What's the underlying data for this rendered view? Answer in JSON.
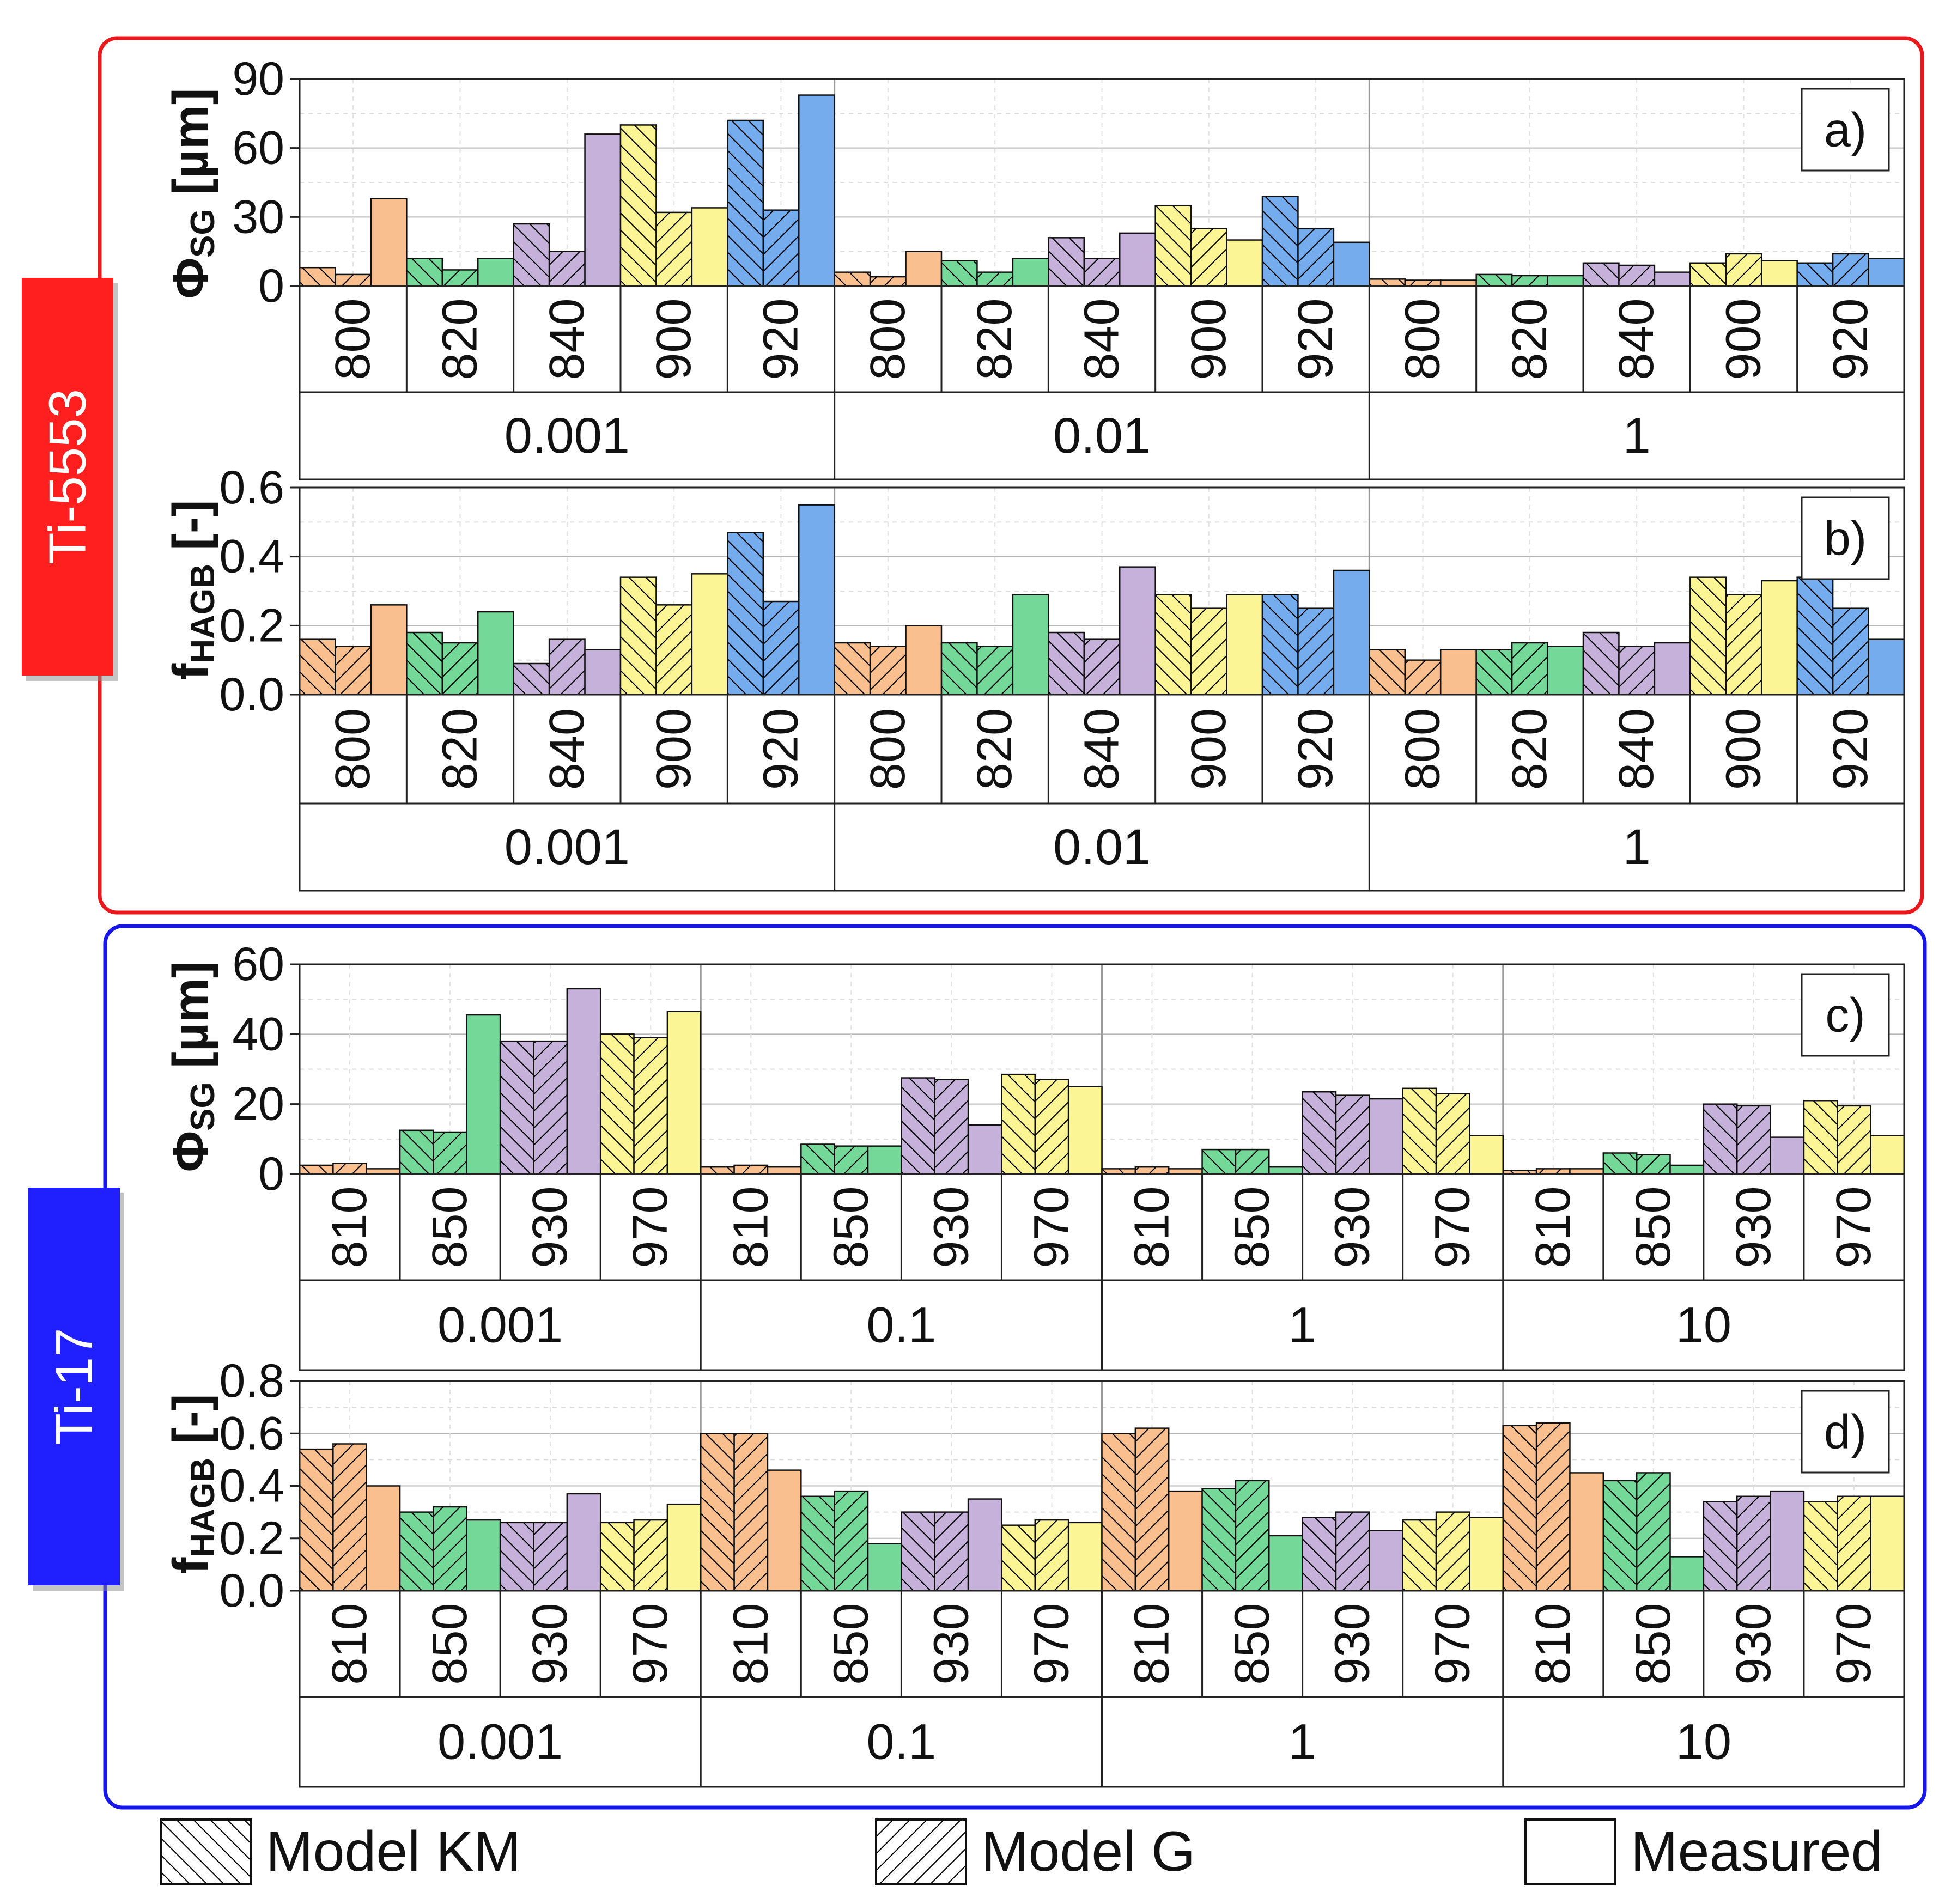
{
  "groups": [
    {
      "id": "ti5553",
      "label": "Ti-5553",
      "frame_color": "#e8191d",
      "tab_color": "#ff1f1f"
    },
    {
      "id": "ti17",
      "label": "Ti-17",
      "frame_color": "#1616e6",
      "tab_color": "#2020ff"
    }
  ],
  "legend": [
    {
      "pattern": "km",
      "label": "Model KM"
    },
    {
      "pattern": "g",
      "label": "Model G"
    },
    {
      "pattern": "none",
      "label": "Measured"
    }
  ],
  "temp_colors": {
    "800": "#f9bf8e",
    "820": "#74d898",
    "840": "#c6b1da",
    "900": "#fbf596",
    "920": "#74acee",
    "810": "#f9bf8e",
    "850": "#74d898",
    "930": "#c6b1da",
    "970": "#fbf596"
  },
  "chart_data": [
    {
      "id": "a",
      "panel_label": "a)",
      "group": "ti5553",
      "type": "bar",
      "ylabel_main": "Φ",
      "ylabel_sub": "SG",
      "ylabel_unit": "[µm]",
      "ylim": [
        0,
        90
      ],
      "yticks": [
        "0",
        "30",
        "60",
        "90"
      ],
      "grid": true,
      "strain_rates": [
        "0.001",
        "0.01",
        "1"
      ],
      "temperatures": [
        "800",
        "820",
        "840",
        "900",
        "920"
      ],
      "series": [
        {
          "name": "Model KM",
          "values": [
            [
              8,
              12,
              27,
              70,
              72
            ],
            [
              6,
              11,
              21,
              35,
              39
            ],
            [
              3,
              5,
              10,
              10,
              10
            ]
          ]
        },
        {
          "name": "Model G",
          "values": [
            [
              5,
              7,
              15,
              32,
              33
            ],
            [
              4,
              6,
              12,
              25,
              25
            ],
            [
              2.5,
              4.5,
              9,
              14,
              14
            ]
          ]
        },
        {
          "name": "Measured",
          "values": [
            [
              38,
              12,
              66,
              34,
              83
            ],
            [
              15,
              12,
              23,
              20,
              19
            ],
            [
              2.5,
              4.5,
              6,
              11,
              12
            ]
          ]
        }
      ]
    },
    {
      "id": "b",
      "panel_label": "b)",
      "group": "ti5553",
      "type": "bar",
      "ylabel_main": "f",
      "ylabel_sub": "HAGB",
      "ylabel_unit": "[-]",
      "ylim": [
        0,
        0.6
      ],
      "yticks": [
        "0.0",
        "0.2",
        "0.4",
        "0.6"
      ],
      "grid": true,
      "strain_rates": [
        "0.001",
        "0.01",
        "1"
      ],
      "temperatures": [
        "800",
        "820",
        "840",
        "900",
        "920"
      ],
      "series": [
        {
          "name": "Model KM",
          "values": [
            [
              0.16,
              0.18,
              0.09,
              0.34,
              0.47
            ],
            [
              0.15,
              0.15,
              0.18,
              0.29,
              0.29
            ],
            [
              0.13,
              0.13,
              0.18,
              0.34,
              0.34
            ]
          ]
        },
        {
          "name": "Model G",
          "values": [
            [
              0.14,
              0.15,
              0.16,
              0.26,
              0.27
            ],
            [
              0.14,
              0.14,
              0.16,
              0.25,
              0.25
            ],
            [
              0.1,
              0.15,
              0.14,
              0.29,
              0.25
            ]
          ]
        },
        {
          "name": "Measured",
          "values": [
            [
              0.26,
              0.24,
              0.13,
              0.35,
              0.55
            ],
            [
              0.2,
              0.29,
              0.37,
              0.29,
              0.36
            ],
            [
              0.13,
              0.14,
              0.15,
              0.33,
              0.16
            ]
          ]
        }
      ]
    },
    {
      "id": "c",
      "panel_label": "c)",
      "group": "ti17",
      "type": "bar",
      "ylabel_main": "Φ",
      "ylabel_sub": "SG",
      "ylabel_unit": "[µm]",
      "ylim": [
        0,
        60
      ],
      "yticks": [
        "0",
        "20",
        "40",
        "60"
      ],
      "grid": true,
      "strain_rates": [
        "0.001",
        "0.1",
        "1",
        "10"
      ],
      "temperatures": [
        "810",
        "850",
        "930",
        "970"
      ],
      "series": [
        {
          "name": "Model KM",
          "values": [
            [
              2.5,
              12.5,
              38,
              40
            ],
            [
              2,
              8.5,
              27.5,
              28.5
            ],
            [
              1.5,
              7,
              23.5,
              24.5
            ],
            [
              1,
              6,
              20,
              21
            ]
          ]
        },
        {
          "name": "Model G",
          "values": [
            [
              3,
              12,
              38,
              39
            ],
            [
              2.5,
              8,
              27,
              27
            ],
            [
              2,
              7,
              22.5,
              23
            ],
            [
              1.5,
              5.5,
              19.5,
              19.5
            ]
          ]
        },
        {
          "name": "Measured",
          "values": [
            [
              1.5,
              45.5,
              53,
              46.5
            ],
            [
              2,
              8,
              14,
              25
            ],
            [
              1.5,
              2,
              21.5,
              11
            ],
            [
              1.5,
              2.5,
              10.5,
              11
            ]
          ]
        }
      ]
    },
    {
      "id": "d",
      "panel_label": "d)",
      "group": "ti17",
      "type": "bar",
      "ylabel_main": "f",
      "ylabel_sub": "HAGB",
      "ylabel_unit": "[-]",
      "ylim": [
        0,
        0.8
      ],
      "yticks": [
        "0.0",
        "0.2",
        "0.4",
        "0.6",
        "0.8"
      ],
      "grid": true,
      "strain_rates": [
        "0.001",
        "0.1",
        "1",
        "10"
      ],
      "temperatures": [
        "810",
        "850",
        "930",
        "970"
      ],
      "series": [
        {
          "name": "Model KM",
          "values": [
            [
              0.54,
              0.3,
              0.26,
              0.26
            ],
            [
              0.6,
              0.36,
              0.3,
              0.25
            ],
            [
              0.6,
              0.39,
              0.28,
              0.27
            ],
            [
              0.63,
              0.42,
              0.34,
              0.34
            ]
          ]
        },
        {
          "name": "Model G",
          "values": [
            [
              0.56,
              0.32,
              0.26,
              0.27
            ],
            [
              0.6,
              0.38,
              0.3,
              0.27
            ],
            [
              0.62,
              0.42,
              0.3,
              0.3
            ],
            [
              0.64,
              0.45,
              0.36,
              0.36
            ]
          ]
        },
        {
          "name": "Measured",
          "values": [
            [
              0.4,
              0.27,
              0.37,
              0.33
            ],
            [
              0.46,
              0.18,
              0.35,
              0.26
            ],
            [
              0.38,
              0.21,
              0.23,
              0.28
            ],
            [
              0.45,
              0.13,
              0.38,
              0.36
            ]
          ]
        }
      ]
    }
  ]
}
